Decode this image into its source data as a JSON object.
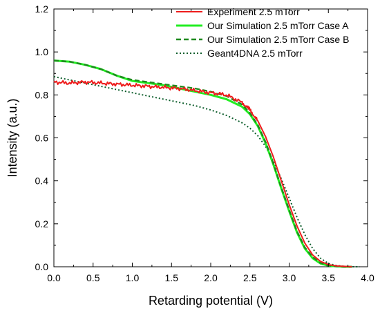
{
  "chart_data": {
    "type": "line",
    "title": "",
    "xlabel": "Retarding potential (V)",
    "ylabel": "Intensity (a.u.)",
    "xlim": [
      0.0,
      4.0
    ],
    "ylim": [
      0.0,
      1.2
    ],
    "x_ticks": [
      "0.0",
      "0.5",
      "1.0",
      "1.5",
      "2.0",
      "2.5",
      "3.0",
      "3.5",
      "4.0"
    ],
    "y_ticks": [
      "0.0",
      "0.2",
      "0.4",
      "0.6",
      "0.8",
      "1.0",
      "1.2"
    ],
    "grid": false,
    "legend_position": "top-right",
    "series": [
      {
        "name": "Experiment 2.5 mTorr",
        "color": "#ee1c1c",
        "style": "solid-noisy",
        "x": [
          0.0,
          0.2,
          0.4,
          0.6,
          0.8,
          1.0,
          1.2,
          1.4,
          1.6,
          1.8,
          2.0,
          2.2,
          2.4,
          2.5,
          2.6,
          2.7,
          2.8,
          2.9,
          3.0,
          3.1,
          3.2,
          3.3,
          3.4,
          3.5,
          3.6,
          3.7,
          3.8
        ],
        "y": [
          0.86,
          0.855,
          0.86,
          0.855,
          0.85,
          0.845,
          0.84,
          0.835,
          0.83,
          0.82,
          0.81,
          0.8,
          0.765,
          0.73,
          0.68,
          0.605,
          0.51,
          0.4,
          0.29,
          0.19,
          0.11,
          0.055,
          0.025,
          0.01,
          0.004,
          0.002,
          0.0
        ]
      },
      {
        "name": "Our Simulation 2.5 mTorr Case A",
        "color": "#22ee22",
        "style": "solid",
        "x": [
          0.0,
          0.2,
          0.4,
          0.6,
          0.8,
          1.0,
          1.2,
          1.4,
          1.6,
          1.8,
          2.0,
          2.2,
          2.4,
          2.5,
          2.6,
          2.7,
          2.8,
          2.9,
          3.0,
          3.1,
          3.2,
          3.3,
          3.4,
          3.5,
          3.6,
          3.7,
          3.8
        ],
        "y": [
          0.96,
          0.955,
          0.94,
          0.92,
          0.89,
          0.865,
          0.855,
          0.845,
          0.83,
          0.815,
          0.8,
          0.78,
          0.745,
          0.71,
          0.655,
          0.575,
          0.475,
          0.365,
          0.26,
          0.16,
          0.085,
          0.04,
          0.015,
          0.005,
          0.002,
          0.0,
          0.0
        ]
      },
      {
        "name": "Our Simulation 2.5 mTorr Case B",
        "color": "#1e8a1e",
        "style": "dashed",
        "x": [
          0.0,
          0.2,
          0.4,
          0.6,
          0.8,
          1.0,
          1.2,
          1.4,
          1.6,
          1.8,
          2.0,
          2.2,
          2.4,
          2.5,
          2.6,
          2.7,
          2.8,
          2.9,
          3.0,
          3.1,
          3.2,
          3.3,
          3.4,
          3.5,
          3.6,
          3.7,
          3.8
        ],
        "y": [
          0.96,
          0.955,
          0.94,
          0.92,
          0.89,
          0.87,
          0.86,
          0.85,
          0.84,
          0.83,
          0.815,
          0.795,
          0.755,
          0.715,
          0.66,
          0.58,
          0.48,
          0.37,
          0.265,
          0.165,
          0.09,
          0.045,
          0.018,
          0.006,
          0.002,
          0.0,
          0.0
        ]
      },
      {
        "name": "Geant4DNA 2.5 mTorr",
        "color": "#0b5c2a",
        "style": "dotted",
        "x": [
          0.0,
          0.2,
          0.4,
          0.6,
          0.8,
          1.0,
          1.2,
          1.4,
          1.6,
          1.8,
          2.0,
          2.2,
          2.4,
          2.5,
          2.6,
          2.7,
          2.8,
          2.9,
          3.0,
          3.1,
          3.2,
          3.3,
          3.4,
          3.5,
          3.6,
          3.7,
          3.8,
          3.9
        ],
        "y": [
          0.885,
          0.87,
          0.855,
          0.84,
          0.825,
          0.81,
          0.795,
          0.78,
          0.765,
          0.75,
          0.73,
          0.705,
          0.67,
          0.645,
          0.61,
          0.56,
          0.49,
          0.41,
          0.32,
          0.23,
          0.15,
          0.085,
          0.04,
          0.015,
          0.006,
          0.002,
          0.0,
          0.0
        ]
      }
    ]
  }
}
